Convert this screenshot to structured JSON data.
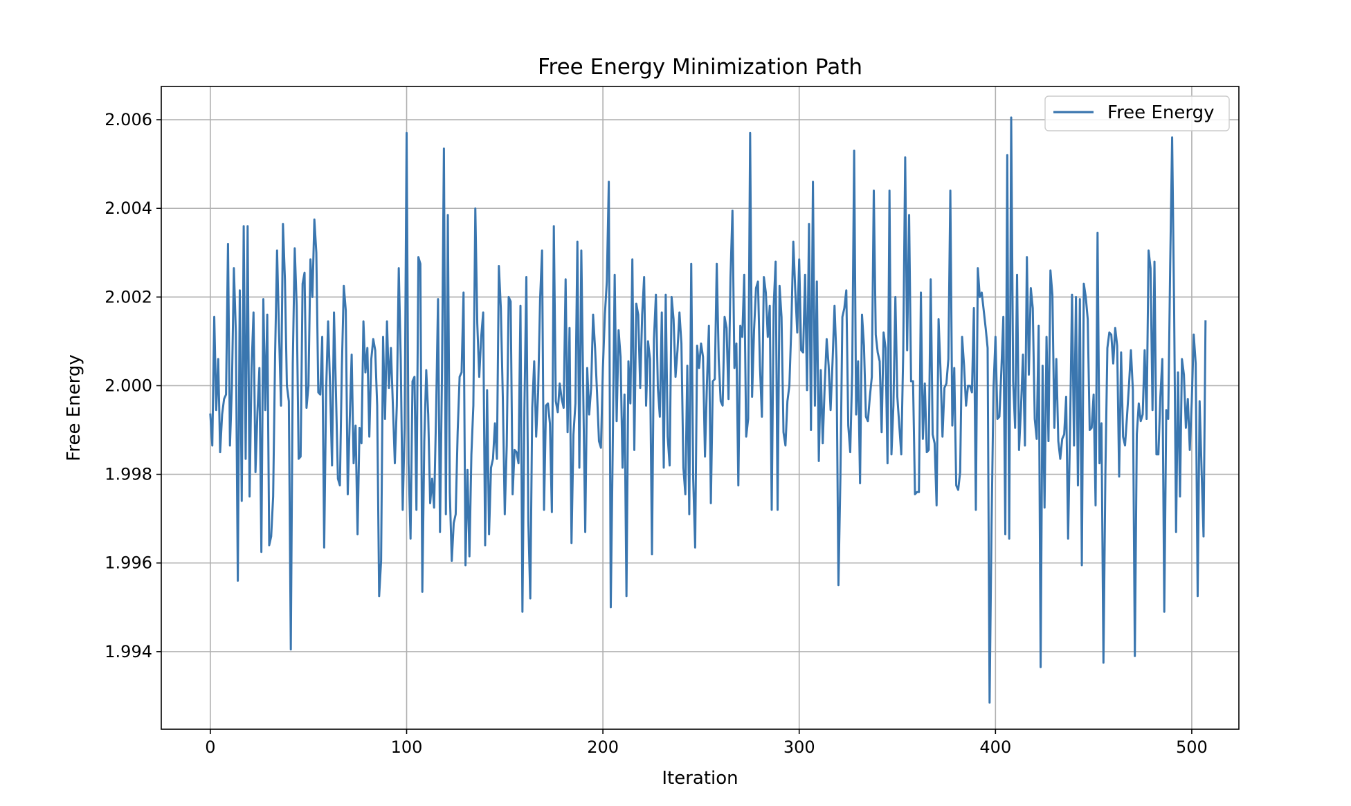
{
  "chart_data": {
    "type": "line",
    "title": "Free Energy Minimization Path",
    "xlabel": "Iteration",
    "ylabel": "Free Energy",
    "xlim": [
      -25,
      524
    ],
    "ylim": [
      1.99225,
      2.00675
    ],
    "xticks": [
      0,
      100,
      200,
      300,
      400,
      500
    ],
    "xtick_labels": [
      "0",
      "100",
      "200",
      "300",
      "400",
      "500"
    ],
    "yticks": [
      1.994,
      1.996,
      1.998,
      2.0,
      2.002,
      2.004,
      2.006
    ],
    "ytick_labels": [
      "1.994",
      "1.996",
      "1.998",
      "2.000",
      "2.002",
      "2.004",
      "2.006"
    ],
    "grid": true,
    "legend_position": "upper right",
    "series": [
      {
        "name": "Free Energy",
        "color": "#3a76af",
        "x_start": 0,
        "x_step": 1,
        "values": [
          1.99935,
          1.99865,
          2.00155,
          1.99945,
          2.0006,
          1.9985,
          1.99935,
          1.9997,
          1.9998,
          2.0032,
          1.99865,
          2.0,
          2.00265,
          2.0012,
          1.9956,
          2.00215,
          1.9974,
          2.0036,
          1.99835,
          2.0036,
          1.9975,
          2.0004,
          2.00165,
          1.99805,
          1.9994,
          2.0004,
          1.99625,
          2.00195,
          1.99945,
          2.0016,
          1.9964,
          1.9966,
          1.9975,
          2.0007,
          2.00305,
          2.0012,
          1.99955,
          2.00365,
          2.0024,
          2.0,
          1.99965,
          1.99405,
          2.0005,
          2.0031,
          2.0018,
          1.99835,
          1.9984,
          2.0023,
          2.00255,
          1.9995,
          2.0,
          2.00285,
          2.002,
          2.00375,
          2.003,
          1.99985,
          1.9998,
          2.0011,
          1.99635,
          1.9999,
          2.00145,
          2.0,
          1.9982,
          2.00165,
          1.99985,
          1.9979,
          1.99775,
          2.0004,
          2.00225,
          2.0017,
          1.99755,
          1.9992,
          2.0007,
          1.99825,
          1.9991,
          1.99665,
          1.99905,
          1.9987,
          2.00145,
          2.0003,
          2.00085,
          1.99885,
          2.0006,
          2.00105,
          2.0008,
          1.99955,
          1.99525,
          1.99605,
          2.0011,
          1.99925,
          2.00145,
          1.99995,
          2.00085,
          1.99955,
          1.99825,
          1.99955,
          2.00265,
          2.0006,
          1.9972,
          1.99905,
          2.0057,
          1.99825,
          1.99655,
          2.0001,
          2.0002,
          1.9972,
          2.0029,
          2.00275,
          1.99535,
          1.99875,
          2.00035,
          1.99935,
          1.99735,
          1.9979,
          1.99725,
          1.99935,
          2.00195,
          1.9967,
          2.0002,
          2.00535,
          1.9971,
          2.00385,
          1.9976,
          1.99605,
          1.9969,
          1.9971,
          1.99895,
          2.0002,
          2.0003,
          2.0021,
          1.99595,
          1.9981,
          1.99615,
          1.99845,
          1.99955,
          2.004,
          2.0014,
          2.0002,
          2.0011,
          2.00165,
          1.9964,
          1.9999,
          1.99665,
          1.99815,
          1.99835,
          1.99915,
          1.99835,
          2.0027,
          2.00175,
          1.99975,
          1.9971,
          1.99865,
          2.002,
          2.0019,
          1.99755,
          1.99855,
          1.9985,
          1.99825,
          2.0018,
          1.9949,
          1.99945,
          2.00245,
          1.99695,
          1.9952,
          1.9995,
          2.00055,
          1.99885,
          1.99985,
          2.00195,
          2.00305,
          1.9972,
          1.99955,
          1.9996,
          1.99915,
          1.99715,
          2.0036,
          1.99965,
          1.9994,
          2.00005,
          1.9997,
          1.9995,
          2.0024,
          1.99895,
          2.0013,
          1.99645,
          1.9989,
          1.9996,
          2.00325,
          1.99815,
          2.00305,
          1.9998,
          1.9967,
          2.0004,
          1.99935,
          1.99995,
          2.0016,
          2.00085,
          1.99985,
          1.99875,
          1.9986,
          2.0004,
          2.0016,
          2.00235,
          2.0046,
          1.995,
          1.9986,
          2.0025,
          1.9992,
          2.00125,
          2.00065,
          1.99815,
          1.9998,
          1.99525,
          2.00055,
          1.9996,
          2.00285,
          1.99855,
          2.00185,
          2.0016,
          1.99995,
          2.0016,
          2.00245,
          1.99955,
          2.001,
          2.0006,
          1.9962,
          2.00105,
          2.00205,
          1.99995,
          1.9993,
          2.00165,
          1.99815,
          2.00205,
          1.99885,
          1.9982,
          2.002,
          2.0015,
          2.0002,
          2.0008,
          2.00165,
          2.00095,
          1.99815,
          1.99755,
          2.00045,
          1.9971,
          2.00275,
          1.9979,
          1.99635,
          2.0009,
          2.0004,
          2.00095,
          2.00065,
          1.9984,
          2.00005,
          2.00135,
          1.99735,
          2.0001,
          2.00015,
          2.00275,
          2.0006,
          1.99965,
          1.99955,
          2.00155,
          2.0013,
          1.9997,
          2.00245,
          2.00395,
          2.0004,
          2.00095,
          1.99775,
          2.00135,
          2.0011,
          2.0025,
          1.99885,
          1.99925,
          2.0057,
          1.99975,
          2.00125,
          2.0022,
          2.00235,
          2.00045,
          1.9993,
          2.00245,
          2.0021,
          2.0011,
          2.0018,
          1.9972,
          2.0018,
          2.0028,
          1.9972,
          2.00225,
          2.00155,
          1.99895,
          1.99865,
          1.99965,
          2.0,
          2.00135,
          2.00325,
          2.00215,
          2.0012,
          2.00285,
          2.0008,
          2.00075,
          2.0025,
          1.9999,
          2.00365,
          1.999,
          2.0046,
          1.99955,
          2.00235,
          1.9983,
          2.00035,
          1.9987,
          2.0,
          2.00105,
          2.00045,
          1.99945,
          2.00055,
          2.0018,
          2.0006,
          1.9955,
          1.99795,
          2.00155,
          2.00175,
          2.00215,
          1.9991,
          1.9985,
          2.0003,
          2.0053,
          1.99935,
          2.00055,
          1.9978,
          2.0016,
          2.0009,
          1.9993,
          1.9992,
          1.99975,
          2.0002,
          2.0044,
          2.00115,
          2.00075,
          2.00055,
          1.99895,
          2.0012,
          2.00085,
          1.99825,
          2.0044,
          1.99845,
          1.99955,
          2.002,
          1.99975,
          1.9991,
          1.99845,
          2.00075,
          2.00515,
          2.0008,
          2.00385,
          2.0001,
          2.0001,
          1.99755,
          1.9976,
          1.9976,
          2.0021,
          1.9988,
          2.00005,
          1.9985,
          1.99855,
          2.0024,
          1.9989,
          1.9987,
          1.9973,
          2.0015,
          2.00035,
          1.99885,
          1.99995,
          2.00005,
          2.0006,
          2.0044,
          1.9991,
          2.0004,
          1.99775,
          1.99765,
          1.99805,
          2.0011,
          2.00045,
          1.99955,
          2.0,
          2.0,
          1.99985,
          2.00175,
          1.9972,
          2.00265,
          2.002,
          2.0021,
          2.0017,
          2.0013,
          2.00085,
          1.99285,
          1.99685,
          1.99995,
          2.0011,
          1.99925,
          1.9993,
          2.00035,
          2.00155,
          1.99665,
          2.0052,
          1.99655,
          2.00605,
          2.0001,
          1.99905,
          2.0025,
          1.99855,
          1.9995,
          2.0007,
          1.99865,
          2.0029,
          2.00025,
          2.0022,
          2.00175,
          1.99925,
          1.9988,
          2.00135,
          1.99365,
          2.00045,
          1.99725,
          2.0011,
          1.99875,
          2.0026,
          2.00205,
          1.99905,
          2.0006,
          1.99875,
          1.99835,
          1.9988,
          1.9989,
          1.99975,
          1.99655,
          1.99905,
          2.00205,
          1.99865,
          2.002,
          1.99775,
          2.00195,
          1.99595,
          2.0023,
          2.002,
          2.0015,
          1.999,
          1.99905,
          1.9998,
          1.9973,
          2.00345,
          1.99825,
          1.99915,
          1.99375,
          1.99805,
          2.00085,
          2.0012,
          2.00115,
          2.0005,
          2.0013,
          2.0009,
          1.99795,
          2.00075,
          1.99885,
          1.99865,
          1.9993,
          2.0,
          2.0008,
          1.9999,
          1.9939,
          1.9989,
          1.9996,
          1.9992,
          1.99935,
          2.0008,
          1.99925,
          2.00305,
          2.00265,
          1.99945,
          2.0028,
          1.99845,
          1.99845,
          1.99975,
          2.0006,
          1.9949,
          1.99945,
          1.99925,
          2.0027,
          2.0056,
          2.0018,
          1.9967,
          2.0003,
          1.9975,
          2.0006,
          2.00025,
          1.99905,
          1.9997,
          1.99855,
          1.99965,
          2.00115,
          2.0005,
          1.99525,
          1.99965,
          1.9981,
          1.9966,
          2.00145
        ]
      }
    ]
  }
}
